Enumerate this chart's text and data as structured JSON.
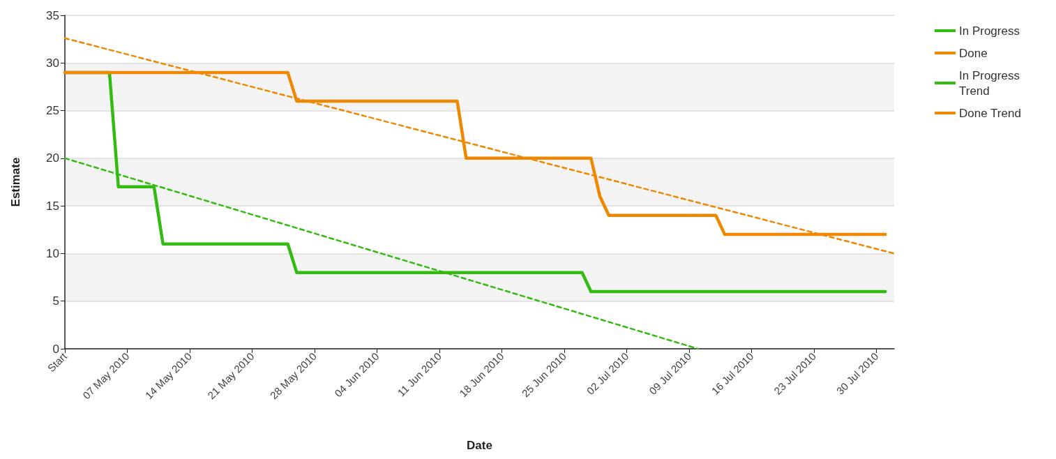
{
  "chart_data": {
    "type": "line",
    "xlabel": "Date",
    "ylabel": "Estimate",
    "xlim": [
      "2010-04-30",
      "2010-08-01"
    ],
    "xticks": [
      {
        "value": "2010-04-30",
        "label": "Start"
      },
      {
        "value": "2010-05-07",
        "label": "07 May 2010"
      },
      {
        "value": "2010-05-14",
        "label": "14 May 2010"
      },
      {
        "value": "2010-05-21",
        "label": "21 May 2010"
      },
      {
        "value": "2010-05-28",
        "label": "28 May 2010"
      },
      {
        "value": "2010-06-04",
        "label": "04 Jun 2010"
      },
      {
        "value": "2010-06-11",
        "label": "11 Jun 2010"
      },
      {
        "value": "2010-06-18",
        "label": "18 Jun 2010"
      },
      {
        "value": "2010-06-25",
        "label": "25 Jun 2010"
      },
      {
        "value": "2010-07-02",
        "label": "02 Jul 2010"
      },
      {
        "value": "2010-07-09",
        "label": "09 Jul 2010"
      },
      {
        "value": "2010-07-16",
        "label": "16 Jul 2010"
      },
      {
        "value": "2010-07-23",
        "label": "23 Jul 2010"
      },
      {
        "value": "2010-07-30",
        "label": "30 Jul 2010"
      }
    ],
    "ylim": [
      0,
      35
    ],
    "yticks": [
      0,
      5,
      10,
      15,
      20,
      25,
      30,
      35
    ],
    "grid": "y",
    "legend": "top right",
    "series": [
      {
        "name": "In Progress",
        "color": "#33bb11",
        "line_style": "solid",
        "x": [
          "2010-04-30",
          "2010-05-05",
          "2010-05-06",
          "2010-05-10",
          "2010-05-11",
          "2010-05-25",
          "2010-05-26",
          "2010-06-27",
          "2010-06-28",
          "2010-07-31"
        ],
        "values": [
          29,
          29,
          17,
          17,
          11,
          11,
          8,
          8,
          6,
          6
        ]
      },
      {
        "name": "Done",
        "color": "#ee8800",
        "line_style": "solid",
        "x": [
          "2010-04-30",
          "2010-05-25",
          "2010-05-26",
          "2010-06-13",
          "2010-06-14",
          "2010-06-28",
          "2010-06-29",
          "2010-06-30",
          "2010-07-12",
          "2010-07-13",
          "2010-07-31"
        ],
        "values": [
          29,
          29,
          26,
          26,
          20,
          20,
          16,
          14,
          14,
          12,
          12
        ]
      },
      {
        "name": "In Progress Trend",
        "color": "#33bb11",
        "line_style": "dashed",
        "x": [
          "2010-04-30",
          "2010-07-10"
        ],
        "values": [
          20,
          0
        ]
      },
      {
        "name": "Done Trend",
        "color": "#ee8800",
        "line_style": "dashed",
        "x": [
          "2010-04-30",
          "2010-08-01"
        ],
        "values": [
          32.6,
          10
        ]
      }
    ]
  }
}
